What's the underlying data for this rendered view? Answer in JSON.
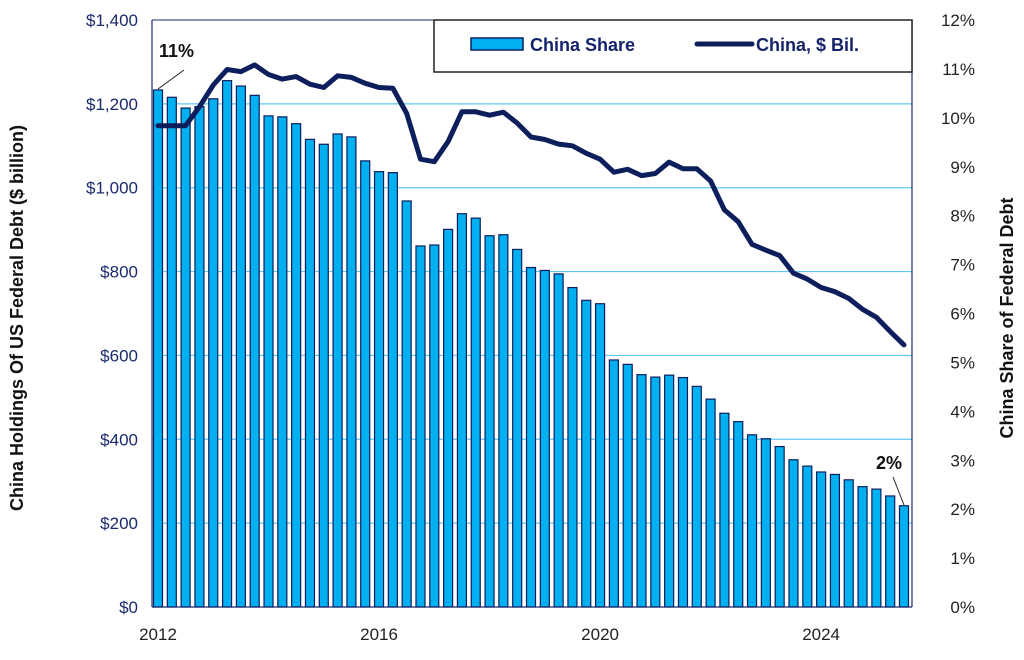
{
  "chart_data": {
    "type": "bar+line",
    "title": "",
    "ylabel_left": "China Holdings Of US Federal Debt ($ billion)",
    "ylabel_right": "China Share of Federal Debt",
    "ylim_left": [
      0,
      1400
    ],
    "ylim_right": [
      0,
      12
    ],
    "yticks_left": [
      "$0",
      "$200",
      "$400",
      "$600",
      "$800",
      "$1,000",
      "$1,200",
      "$1,400"
    ],
    "yticks_right": [
      "0%",
      "1%",
      "2%",
      "3%",
      "4%",
      "5%",
      "6%",
      "7%",
      "8%",
      "9%",
      "10%",
      "11%",
      "12%"
    ],
    "xticks": [
      "2012",
      "2016",
      "2020",
      "2024"
    ],
    "x_start": "2012 Q1",
    "x_frequency": "quarterly",
    "grid": "horizontal",
    "legend_placement": "top",
    "colors": {
      "bar_fill": "#00b0f0",
      "bar_stroke": "#0c1f5c",
      "line": "#0c1f5c",
      "grid": "#5bc8f0"
    },
    "series": [
      {
        "name": "China Share",
        "type": "bar",
        "axis": "right",
        "unit": "%",
        "values": [
          10.57,
          10.42,
          10.2,
          10.23,
          10.39,
          10.76,
          10.65,
          10.46,
          10.04,
          10.02,
          9.88,
          9.56,
          9.46,
          9.67,
          9.61,
          9.12,
          8.9,
          8.88,
          8.3,
          7.38,
          7.4,
          7.72,
          8.04,
          7.95,
          7.59,
          7.61,
          7.31,
          6.94,
          6.88,
          6.81,
          6.53,
          6.27,
          6.2,
          5.05,
          4.96,
          4.75,
          4.7,
          4.74,
          4.69,
          4.51,
          4.25,
          3.96,
          3.79,
          3.52,
          3.44,
          3.28,
          3.01,
          2.88,
          2.76,
          2.71,
          2.6,
          2.46,
          2.41,
          2.27,
          2.07
        ]
      },
      {
        "name": "China, $ Bil.",
        "type": "line",
        "axis": "left",
        "unit": "$ billion",
        "values": [
          1148,
          1148,
          1148,
          1193,
          1245,
          1282,
          1277,
          1293,
          1270,
          1259,
          1265,
          1247,
          1239,
          1267,
          1263,
          1249,
          1239,
          1237,
          1177,
          1068,
          1062,
          1110,
          1181,
          1181,
          1173,
          1180,
          1154,
          1121,
          1115,
          1104,
          1100,
          1082,
          1068,
          1037,
          1044,
          1029,
          1034,
          1061,
          1045,
          1045,
          1016,
          947,
          919,
          865,
          851,
          838,
          796,
          782,
          762,
          752,
          736,
          710,
          691,
          657,
          625
        ]
      }
    ],
    "annotations": [
      {
        "text": "11%",
        "points_to": "first bar"
      },
      {
        "text": "2%",
        "points_to": "last bar"
      }
    ]
  }
}
